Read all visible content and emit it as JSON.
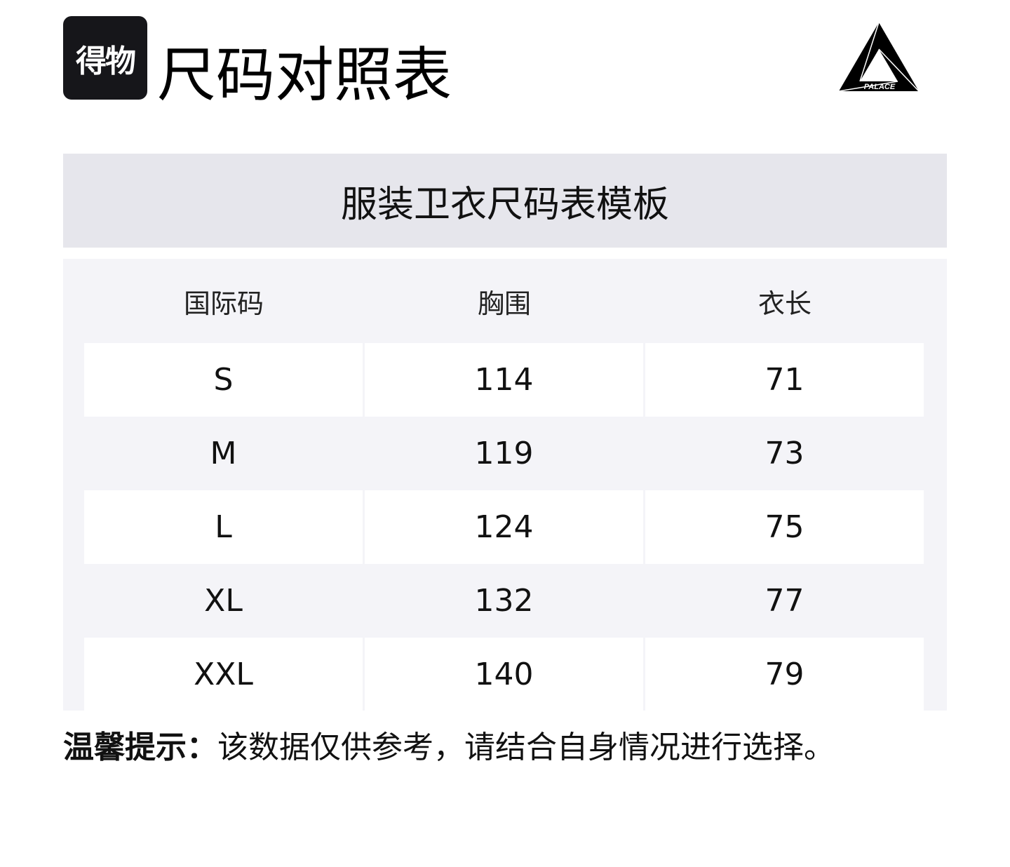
{
  "header": {
    "logo_text": "得物",
    "title": "尺码对照表",
    "brand_logo": "PALACE"
  },
  "table": {
    "title": "服装卫衣尺码表模板",
    "columns": [
      "国际码",
      "胸围",
      "衣长"
    ],
    "rows": [
      [
        "S",
        "114",
        "71"
      ],
      [
        "M",
        "119",
        "73"
      ],
      [
        "L",
        "124",
        "75"
      ],
      [
        "XL",
        "132",
        "77"
      ],
      [
        "XXL",
        "140",
        "79"
      ]
    ]
  },
  "note": {
    "label": "温馨提示：",
    "text": "该数据仅供参考，请结合自身情况进行选择。"
  }
}
